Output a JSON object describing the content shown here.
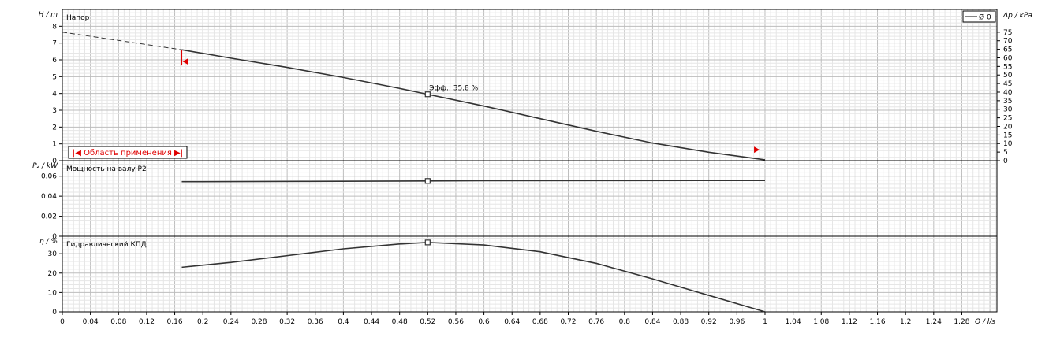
{
  "chart_data": [
    {
      "type": "line",
      "title": "Напор",
      "ylabel": "H / m",
      "ylabel_right": "Δp / kPa",
      "ylim": [
        0,
        9
      ],
      "yticks": [
        0,
        1,
        2,
        3,
        4,
        5,
        6,
        7,
        8
      ],
      "yticks_right": [
        0,
        5,
        10,
        15,
        20,
        25,
        30,
        35,
        40,
        45,
        50,
        55,
        60,
        65,
        70,
        75
      ],
      "ylim_right": [
        0,
        88.26
      ],
      "grid": true,
      "legend": {
        "label": "Ø 0",
        "position": "top-right"
      },
      "operating_range_label": "|◀ Область применения ▶|",
      "annotation": {
        "text": "Эфф.: 35.8 %",
        "x": 0.52,
        "y": 3.95
      },
      "series": [
        {
          "name": "Ø 0",
          "style": "solid",
          "x": [
            0.17,
            0.24,
            0.32,
            0.4,
            0.48,
            0.52,
            0.6,
            0.68,
            0.76,
            0.84,
            0.92,
            1.0
          ],
          "y": [
            6.6,
            6.1,
            5.55,
            4.95,
            4.3,
            3.95,
            3.25,
            2.5,
            1.75,
            1.05,
            0.5,
            0.05
          ]
        },
        {
          "name": "extrapolation",
          "style": "dashed",
          "x": [
            0.0,
            0.17
          ],
          "y": [
            7.65,
            6.6
          ]
        }
      ],
      "markers": {
        "range_start": {
          "x": 0.17,
          "y": 5.9
        },
        "range_end": {
          "x": 0.99,
          "y": 0.65
        }
      }
    },
    {
      "type": "line",
      "title": "Мощность на валу P2",
      "ylabel": "P₂ / kW",
      "ylim": [
        0,
        0.0755
      ],
      "yticks": [
        0,
        0.02,
        0.04,
        0.06
      ],
      "grid": true,
      "annotation_point": {
        "x": 0.52,
        "y": 0.0552
      },
      "series": [
        {
          "name": "P2",
          "x": [
            0.17,
            0.35,
            0.52,
            0.6,
            0.8,
            1.0
          ],
          "y": [
            0.0545,
            0.0548,
            0.0552,
            0.0555,
            0.0556,
            0.0557
          ]
        }
      ]
    },
    {
      "type": "line",
      "title": "Гидравлический КПД",
      "ylabel": "η / %",
      "ylim": [
        0,
        39
      ],
      "yticks": [
        0,
        10,
        20,
        30
      ],
      "grid": true,
      "annotation_point": {
        "x": 0.52,
        "y": 35.8
      },
      "series": [
        {
          "name": "КПД",
          "x": [
            0.17,
            0.24,
            0.32,
            0.4,
            0.48,
            0.52,
            0.6,
            0.68,
            0.76,
            0.84,
            0.92,
            1.0
          ],
          "y": [
            23,
            25.5,
            29,
            32.5,
            35,
            35.8,
            34.5,
            31,
            25,
            17,
            8.5,
            0
          ]
        }
      ]
    }
  ],
  "x_axis": {
    "label": "Q / l/s",
    "xlim": [
      0,
      1.33
    ],
    "ticks": [
      0,
      0.04,
      0.08,
      0.12,
      0.16,
      0.2,
      0.24,
      0.28,
      0.32,
      0.36,
      0.4,
      0.44,
      0.48,
      0.52,
      0.56,
      0.6,
      0.64,
      0.68,
      0.72,
      0.76,
      0.8,
      0.84,
      0.88,
      0.92,
      0.96,
      1,
      1.04,
      1.08,
      1.12,
      1.16,
      1.2,
      1.24,
      1.28
    ],
    "tick_labels": [
      "0",
      "0.04",
      "0.08",
      "0.12",
      "0.16",
      "0.2",
      "0.24",
      "0.28",
      "0.32",
      "0.36",
      "0.4",
      "0.44",
      "0.48",
      "0.52",
      "0.56",
      "0.6",
      "0.64",
      "0.68",
      "0.72",
      "0.76",
      "0.8",
      "0.84",
      "0.88",
      "0.92",
      "0.96",
      "1",
      "1.04",
      "1.08",
      "1.12",
      "1.16",
      "1.2",
      "1.24",
      "1.28"
    ]
  },
  "colors": {
    "curve": "#333333",
    "grid_minor": "#e6e6e6",
    "grid_major": "#bdbdbd",
    "marker_red": "#e00000",
    "frame": "#000000"
  }
}
